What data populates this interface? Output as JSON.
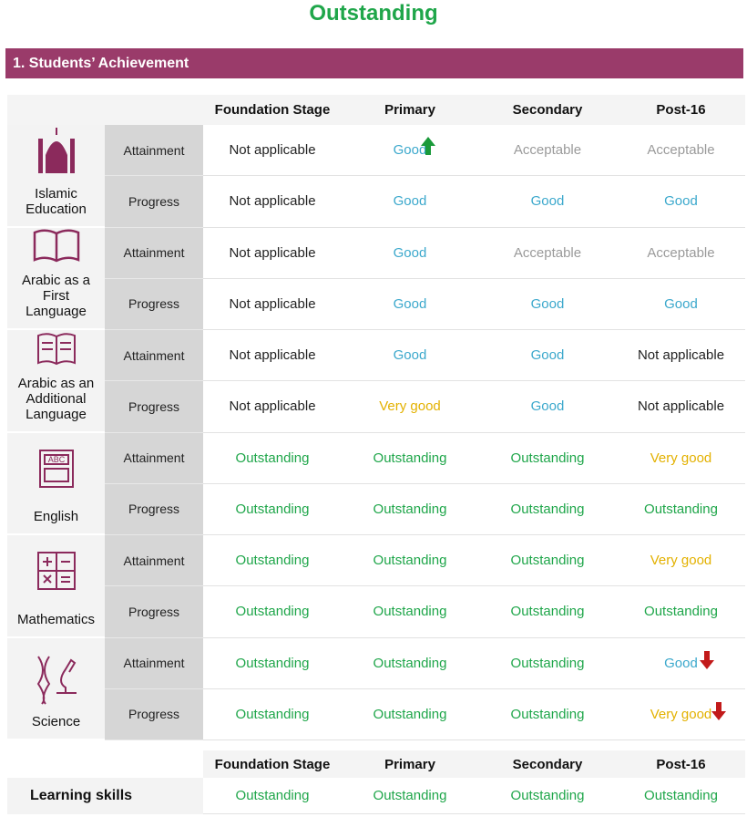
{
  "title": "Outstanding",
  "section": "1. Students’ Achievement",
  "columns": [
    "Foundation Stage",
    "Primary",
    "Secondary",
    "Post-16"
  ],
  "rating_colors": {
    "Outstanding": "#1fa64a",
    "Very good": "#e3b100",
    "Good": "#3ba8cc",
    "Acceptable": "#9a9a9a",
    "Not applicable": "#222222"
  },
  "subjects": [
    {
      "name": "Islamic Education",
      "rows": [
        {
          "label": "Attainment",
          "cells": [
            "Not applicable",
            "Good",
            "Acceptable",
            "Acceptable"
          ]
        },
        {
          "label": "Progress",
          "cells": [
            "Not applicable",
            "Good",
            "Good",
            "Good"
          ]
        }
      ]
    },
    {
      "name": "Arabic as a First Language",
      "rows": [
        {
          "label": "Attainment",
          "cells": [
            "Not applicable",
            "Good",
            "Acceptable",
            "Acceptable"
          ]
        },
        {
          "label": "Progress",
          "cells": [
            "Not applicable",
            "Good",
            "Good",
            "Good"
          ]
        }
      ]
    },
    {
      "name": "Arabic as an Additional Language",
      "rows": [
        {
          "label": "Attainment",
          "cells": [
            "Not applicable",
            "Good",
            "Good",
            "Not applicable"
          ]
        },
        {
          "label": "Progress",
          "cells": [
            "Not applicable",
            "Very good",
            "Good",
            "Not applicable"
          ]
        }
      ]
    },
    {
      "name": "English",
      "rows": [
        {
          "label": "Attainment",
          "cells": [
            "Outstanding",
            "Outstanding",
            "Outstanding",
            "Very good"
          ]
        },
        {
          "label": "Progress",
          "cells": [
            "Outstanding",
            "Outstanding",
            "Outstanding",
            "Outstanding"
          ]
        }
      ]
    },
    {
      "name": "Mathematics",
      "rows": [
        {
          "label": "Attainment",
          "cells": [
            "Outstanding",
            "Outstanding",
            "Outstanding",
            "Very good"
          ]
        },
        {
          "label": "Progress",
          "cells": [
            "Outstanding",
            "Outstanding",
            "Outstanding",
            "Outstanding"
          ]
        }
      ]
    },
    {
      "name": "Science",
      "rows": [
        {
          "label": "Attainment",
          "cells": [
            "Outstanding",
            "Outstanding",
            "Outstanding",
            "Good"
          ]
        },
        {
          "label": "Progress",
          "cells": [
            "Outstanding",
            "Outstanding",
            "Outstanding",
            "Very good"
          ]
        }
      ]
    }
  ],
  "learning_skills": {
    "columns": [
      "Foundation Stage",
      "Primary",
      "Secondary",
      "Post-16"
    ],
    "label": "Learning skills",
    "cells": [
      "Outstanding",
      "Outstanding",
      "Outstanding",
      "Outstanding"
    ]
  }
}
